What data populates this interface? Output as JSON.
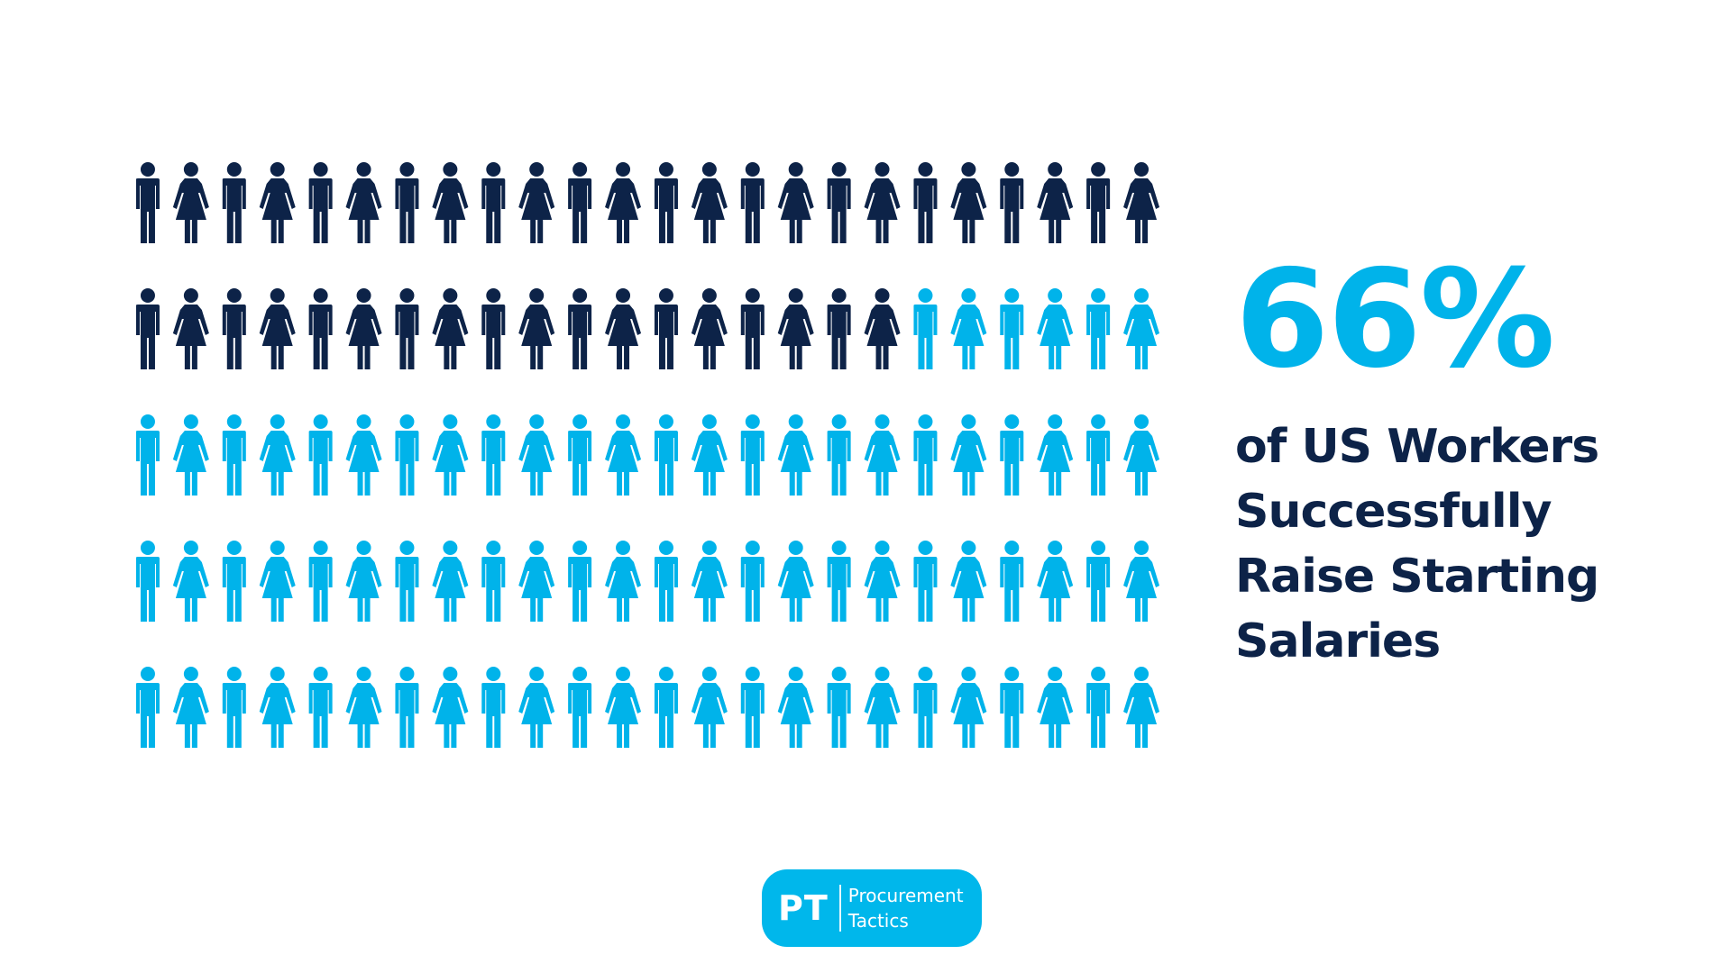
{
  "chart_data": {
    "type": "pictogram",
    "total_icons": 120,
    "icons_per_row": 24,
    "rows": 5,
    "highlighted_icons": 42,
    "highlight_color": "#0d2348",
    "base_color": "#00b3ea",
    "icon_pattern": [
      "man-icon",
      "woman-icon"
    ]
  },
  "stat": {
    "value": "66%",
    "caption_lines": [
      "of US Workers",
      "Successfully",
      "Raise Starting",
      "Salaries"
    ]
  },
  "logo": {
    "mark": "PT",
    "name_line1": "Procurement",
    "name_line2": "Tactics"
  }
}
